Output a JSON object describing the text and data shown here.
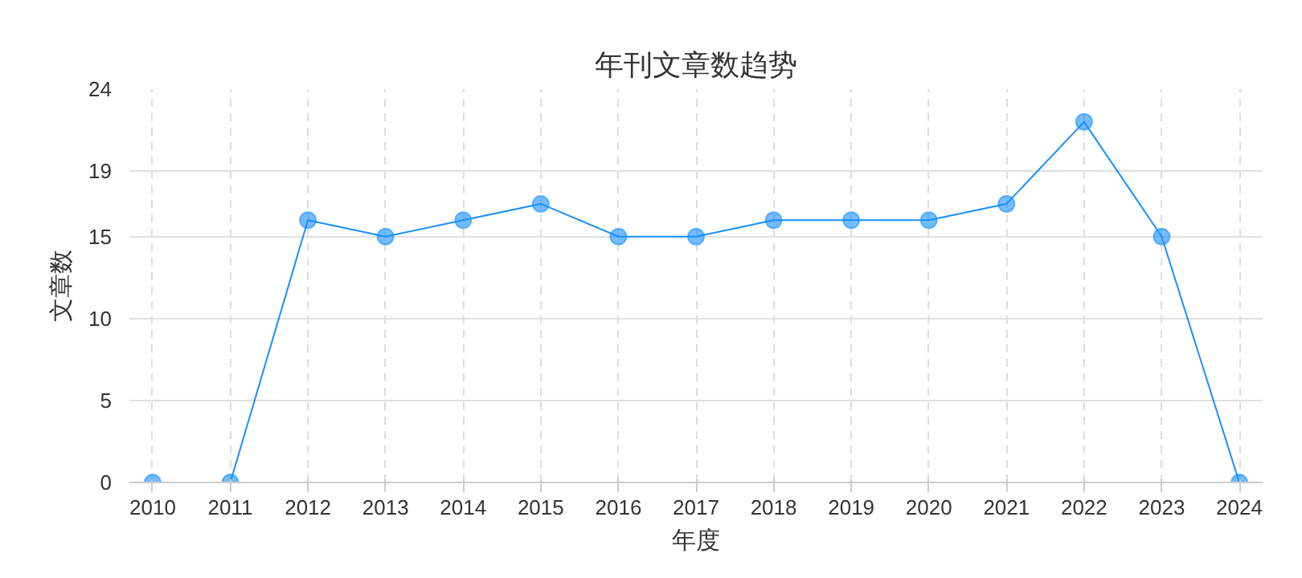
{
  "chart_data": {
    "type": "line",
    "title": "年刊文章数趋势",
    "xlabel": "年度",
    "ylabel": "文章数",
    "categories": [
      "2010",
      "2011",
      "2012",
      "2013",
      "2014",
      "2015",
      "2016",
      "2017",
      "2018",
      "2019",
      "2020",
      "2021",
      "2022",
      "2023",
      "2024"
    ],
    "series": [
      {
        "color": "#1890ff",
        "values": [
          0,
          0,
          16,
          15,
          16,
          17,
          15,
          15,
          16,
          16,
          16,
          17,
          22,
          15,
          0
        ]
      }
    ],
    "ylim": [
      0,
      24
    ],
    "yticks": [
      0,
      5,
      10,
      15,
      19,
      24
    ],
    "grid": true,
    "marker": "circle",
    "line_style": "solid"
  }
}
